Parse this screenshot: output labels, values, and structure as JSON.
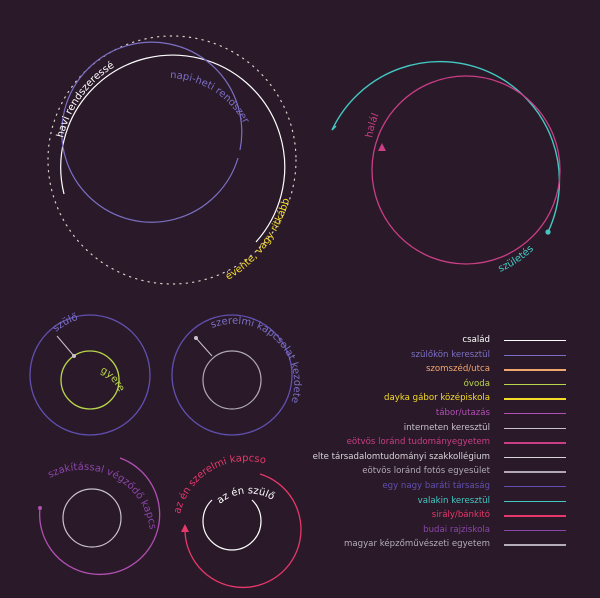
{
  "diagrams": {
    "rhythm": {
      "yearly": "évente, vagy ritkább",
      "monthly": "havi rendszeresség",
      "daily_weekly": "napi-heti rendszeresség"
    },
    "life": {
      "birth": "születés",
      "death": "halál"
    },
    "parent": {
      "outer": "szülő",
      "inner": "gyerek"
    },
    "romance_start": {
      "outer": "szerelmi kapcsolat kezdete"
    },
    "breakup": {
      "outer": "szakítással végződő kapcsolat"
    },
    "me_romance": {
      "outer": "az én szerelmi kapcsolatom",
      "inner": "az én szülőm"
    }
  },
  "legend": [
    {
      "label": "család",
      "color": "#ffffff"
    },
    {
      "label": "szülőkön keresztül",
      "color": "#7b6fc4"
    },
    {
      "label": "szomszéd/utca",
      "color": "#f2a66f"
    },
    {
      "label": "óvoda",
      "color": "#b9d64b"
    },
    {
      "label": "dayka gábor középiskola",
      "color": "#f5dc28"
    },
    {
      "label": "tábor/utazás",
      "color": "#b14fb3"
    },
    {
      "label": "interneten keresztül",
      "color": "#c9c1cc"
    },
    {
      "label": "eötvös loránd tudományegyetem",
      "color": "#c93e85"
    },
    {
      "label": "elte társadalomtudományi szakkollégium",
      "color": "#d8d4da"
    },
    {
      "label": "eötvös loránd fotós egyesület",
      "color": "#b0a9b4"
    },
    {
      "label": "egy nagy baráti társaság",
      "color": "#6150b0"
    },
    {
      "label": "valakin keresztül",
      "color": "#43c8c3"
    },
    {
      "label": "sirály/bánkitó",
      "color": "#e6386a"
    },
    {
      "label": "budai rajziskola",
      "color": "#8a45a8"
    },
    {
      "label": "magyar képzőművészeti egyetem",
      "color": "#b5adb8"
    }
  ]
}
